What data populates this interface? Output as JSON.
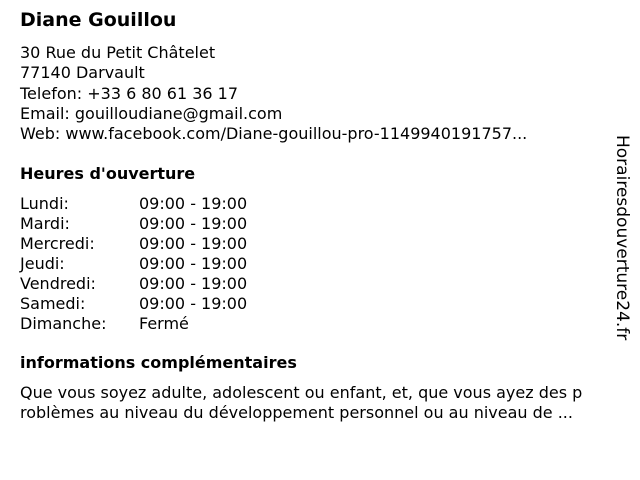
{
  "business": {
    "name": "Diane Gouillou",
    "address_line1": "30 Rue du Petit Châtelet",
    "address_line2": "77140 Darvault",
    "phone": "Telefon: +33 6 80 61 36 17",
    "email": "Email: gouilloudiane@gmail.com",
    "web": "Web: www.facebook.com/Diane-gouillou-pro-1149940191757..."
  },
  "hours": {
    "heading": "Heures d'ouverture",
    "rows": [
      {
        "day": "Lundi:",
        "time": "09:00 - 19:00"
      },
      {
        "day": "Mardi:",
        "time": "09:00 - 19:00"
      },
      {
        "day": "Mercredi:",
        "time": "09:00 - 19:00"
      },
      {
        "day": "Jeudi:",
        "time": "09:00 - 19:00"
      },
      {
        "day": "Vendredi:",
        "time": "09:00 - 19:00"
      },
      {
        "day": "Samedi:",
        "time": "09:00 - 19:00"
      },
      {
        "day": "Dimanche:",
        "time": "Fermé"
      }
    ]
  },
  "info": {
    "heading": "informations complémentaires",
    "line1": "Que vous soyez adulte, adolescent ou enfant, et, que vous ayez des p",
    "line2": "roblèmes au niveau du développement personnel ou au niveau de ..."
  },
  "watermark": "Horairesdouverture24.fr"
}
